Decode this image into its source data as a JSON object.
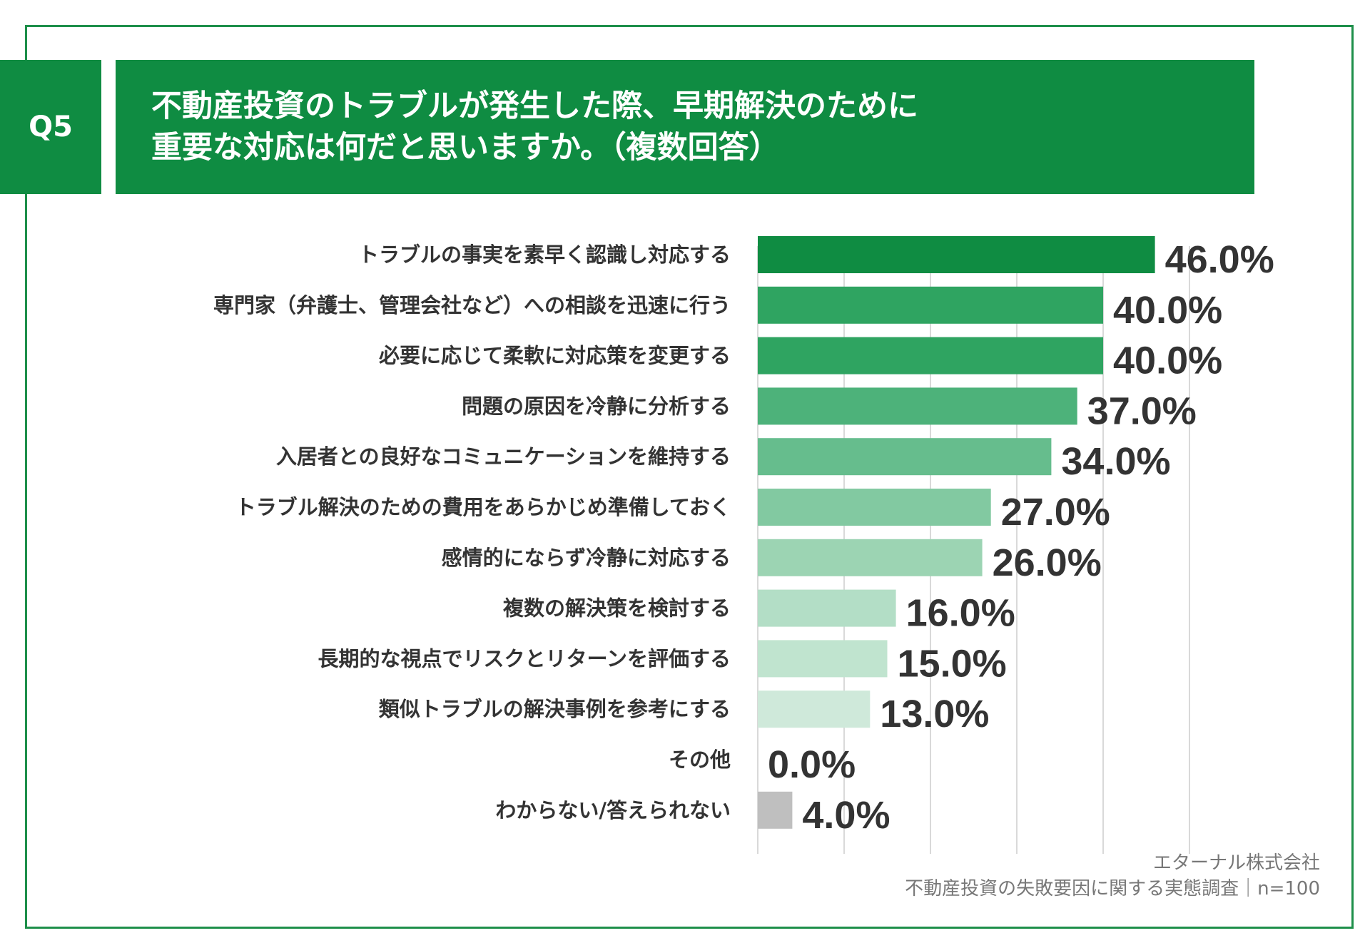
{
  "question": {
    "badge": "Q5",
    "title_line1": "不動産投資のトラブルが発生した際、早期解決のために",
    "title_line2": "重要な対応は何だと思いますか。（複数回答）"
  },
  "colors": {
    "brand_green": "#0f8c42",
    "other_gray": "#bfbfbf"
  },
  "chart_data": {
    "type": "bar",
    "orientation": "horizontal",
    "title": "不動産投資のトラブルが発生した際、早期解決のために重要な対応は何だと思いますか。（複数回答）",
    "categories": [
      "トラブルの事実を素早く認識し対応する",
      "専門家（弁護士、管理会社など）への相談を迅速に行う",
      "必要に応じて柔軟に対応策を変更する",
      "問題の原因を冷静に分析する",
      "入居者との良好なコミュニケーションを維持する",
      "トラブル解決のための費用をあらかじめ準備しておく",
      "感情的にならず冷静に対応する",
      "複数の解決策を検討する",
      "長期的な視点でリスクとリターンを評価する",
      "類似トラブルの解決事例を参考にする",
      "その他",
      "わからない/答えられない"
    ],
    "values": [
      46.0,
      40.0,
      40.0,
      37.0,
      34.0,
      27.0,
      26.0,
      16.0,
      15.0,
      13.0,
      0.0,
      4.0
    ],
    "value_labels": [
      "46.0%",
      "40.0%",
      "40.0%",
      "37.0%",
      "34.0%",
      "27.0%",
      "26.0%",
      "16.0%",
      "15.0%",
      "13.0%",
      "0.0%",
      "4.0%"
    ],
    "bar_colors": [
      "#0f8c42",
      "#2fa461",
      "#2fa461",
      "#4db27a",
      "#66bd8d",
      "#82c9a1",
      "#9cd4b3",
      "#b3dec6",
      "#c0e4cf",
      "#cfe9da",
      "#dcefe4",
      "#bfbfbf"
    ],
    "xlim": [
      0,
      50
    ],
    "gridlines": [
      0,
      10,
      20,
      30,
      40,
      50
    ],
    "grid": true,
    "legend": "none"
  },
  "footer": {
    "company": "エターナル株式会社",
    "survey": "不動産投資の失敗要因に関する実態調査｜n=100"
  }
}
